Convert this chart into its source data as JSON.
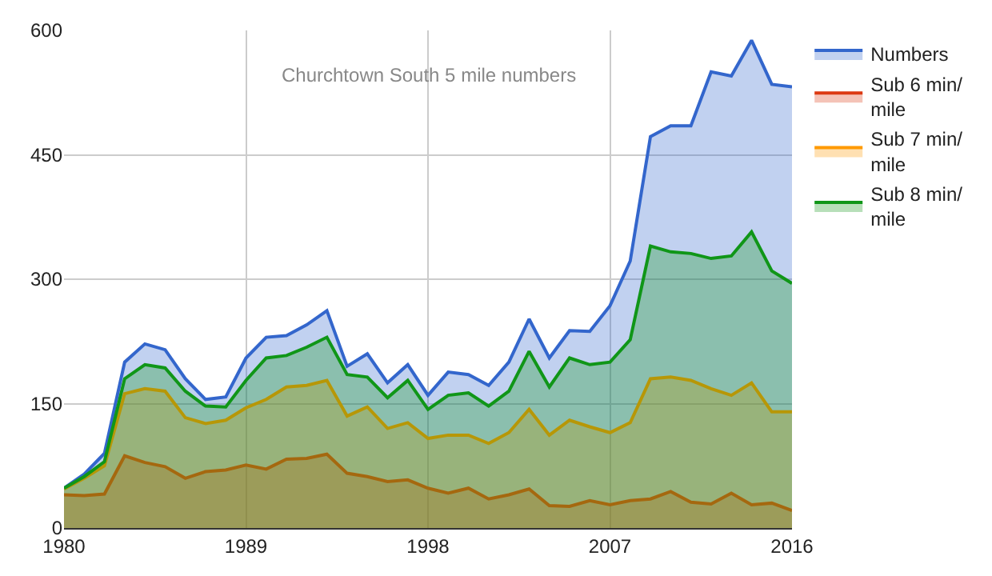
{
  "chart_data": {
    "type": "area",
    "annotations": [
      "Churchtown South 5 mile numbers"
    ],
    "x": [
      1980,
      1981,
      1982,
      1983,
      1984,
      1985,
      1986,
      1987,
      1988,
      1989,
      1990,
      1991,
      1992,
      1993,
      1994,
      1995,
      1996,
      1997,
      1998,
      1999,
      2000,
      2001,
      2002,
      2003,
      2004,
      2005,
      2006,
      2007,
      2008,
      2009,
      2010,
      2011,
      2012,
      2013,
      2014,
      2015,
      2016
    ],
    "series": [
      {
        "name": "Numbers",
        "color": "#3366cc",
        "values": [
          48,
          65,
          90,
          200,
          222,
          215,
          180,
          155,
          158,
          205,
          230,
          232,
          245,
          262,
          195,
          210,
          175,
          197,
          160,
          188,
          185,
          172,
          200,
          252,
          205,
          238,
          237,
          268,
          322,
          472,
          485,
          485,
          550,
          545,
          588,
          535,
          532
        ]
      },
      {
        "name": "Sub 6 min/mile",
        "color": "#dc3912",
        "values": [
          40,
          39,
          41,
          87,
          79,
          74,
          60,
          68,
          70,
          76,
          71,
          83,
          84,
          89,
          66,
          62,
          56,
          58,
          48,
          42,
          48,
          35,
          40,
          47,
          27,
          26,
          33,
          28,
          33,
          35,
          44,
          31,
          29,
          42,
          28,
          30,
          21
        ]
      },
      {
        "name": "Sub 7 min/mile",
        "color": "#ff9900",
        "values": [
          47,
          60,
          75,
          162,
          168,
          165,
          133,
          126,
          130,
          145,
          155,
          170,
          172,
          178,
          135,
          146,
          120,
          127,
          108,
          112,
          112,
          102,
          115,
          143,
          112,
          130,
          122,
          115,
          127,
          180,
          182,
          178,
          168,
          160,
          175,
          140,
          140
        ]
      },
      {
        "name": "Sub 8 min/mile",
        "color": "#109618",
        "values": [
          48,
          62,
          80,
          180,
          197,
          193,
          165,
          147,
          146,
          178,
          205,
          208,
          218,
          230,
          185,
          182,
          157,
          178,
          143,
          160,
          163,
          147,
          165,
          213,
          170,
          205,
          197,
          200,
          227,
          340,
          333,
          331,
          325,
          328,
          357,
          310,
          295
        ]
      }
    ],
    "xlim": [
      1980,
      2016
    ],
    "xticks": [
      1980,
      1989,
      1998,
      2007,
      2016
    ],
    "ylim": [
      0,
      600
    ],
    "yticks": [
      0,
      150,
      300,
      450,
      600
    ],
    "grid": true,
    "legend": "right",
    "marker": "none",
    "line_style": "solid"
  }
}
